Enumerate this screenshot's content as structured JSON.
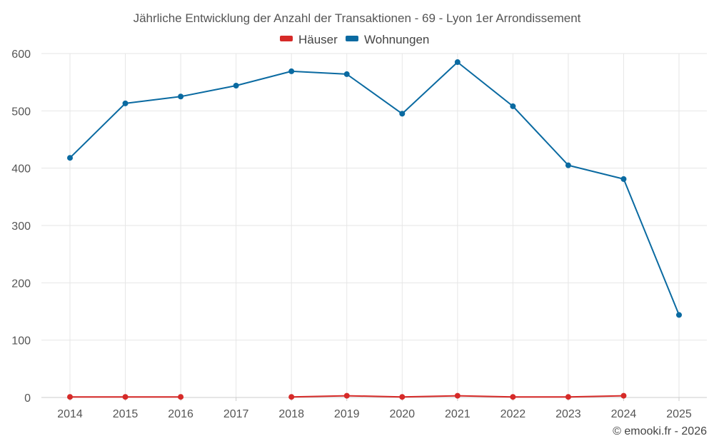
{
  "chart_data": {
    "type": "line",
    "title": "Jährliche Entwicklung der Anzahl der Transaktionen - 69 - Lyon 1er Arrondissement",
    "xlabel": "",
    "ylabel": "",
    "categories": [
      "2014",
      "2015",
      "2016",
      "2017",
      "2018",
      "2019",
      "2020",
      "2021",
      "2022",
      "2023",
      "2024",
      "2025"
    ],
    "ylim": [
      0,
      600
    ],
    "yticks": [
      0,
      100,
      200,
      300,
      400,
      500,
      600
    ],
    "grid": true,
    "legend_position": "top-center",
    "series": [
      {
        "name": "Häuser",
        "color": "#d62a28",
        "values": [
          1,
          1,
          1,
          null,
          1,
          3,
          1,
          3,
          1,
          1,
          3,
          null
        ]
      },
      {
        "name": "Wohnungen",
        "color": "#0a6aa1",
        "values": [
          418,
          513,
          525,
          544,
          569,
          564,
          495,
          585,
          508,
          405,
          381,
          144
        ]
      }
    ]
  },
  "credit": "© emooki.fr - 2026"
}
